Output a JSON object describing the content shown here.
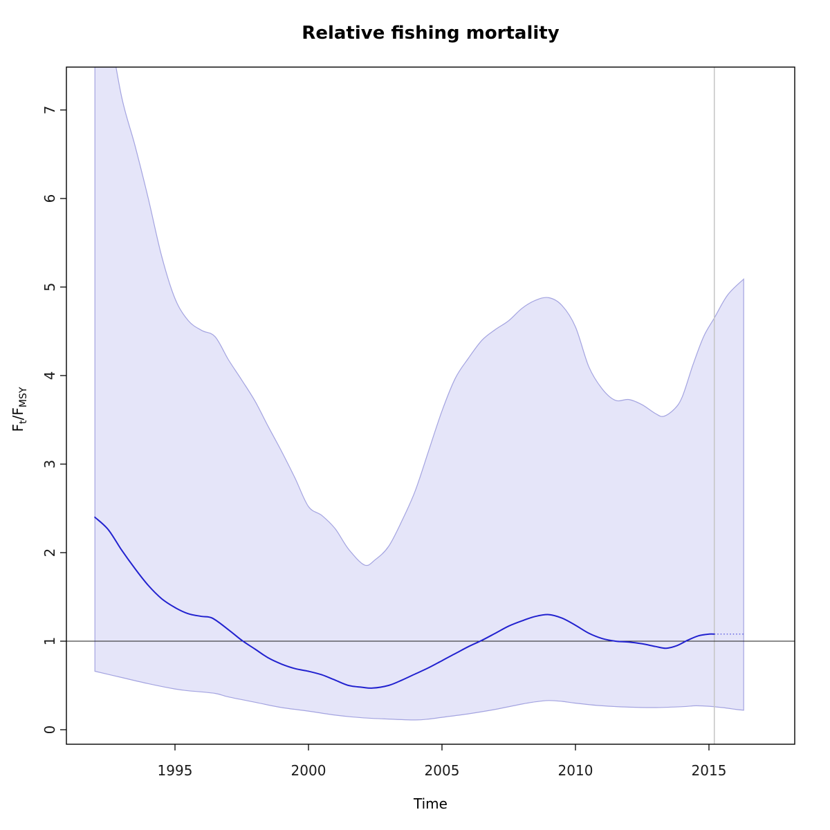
{
  "chart_data": {
    "type": "line",
    "title": "Relative fishing mortality",
    "xlabel": "Time",
    "ylabel": "Ft/FMSY",
    "ylabel_parts": {
      "base1": "F",
      "sub1": "t",
      "sep": "/",
      "base2": "F",
      "sub2": "MSY"
    },
    "xlim": [
      1990.9,
      2018.2
    ],
    "ylim": [
      -0.16,
      7.48
    ],
    "x_ticks": [
      1995,
      2000,
      2005,
      2010,
      2015
    ],
    "y_ticks": [
      0,
      1,
      2,
      3,
      4,
      5,
      6,
      7
    ],
    "grid": false,
    "legend": "none",
    "reference_lines": {
      "horizontal_y": 1.0,
      "vertical_x": 2015.2
    },
    "series": [
      {
        "name": "median-relative-fishing-mortality",
        "style": "solid",
        "x": [
          1992,
          1992.5,
          1993,
          1993.5,
          1994,
          1994.5,
          1995,
          1995.5,
          1996,
          1996.4,
          1997,
          1997.5,
          1998,
          1998.5,
          1999,
          1999.5,
          2000,
          2000.5,
          2001,
          2001.5,
          2002,
          2002.4,
          2003,
          2003.5,
          2004,
          2004.5,
          2005,
          2005.5,
          2006,
          2006.5,
          2007,
          2007.5,
          2008,
          2008.5,
          2009,
          2009.5,
          2010,
          2010.5,
          2011,
          2011.5,
          2012,
          2012.5,
          2013,
          2013.4,
          2013.8,
          2014.2,
          2014.6,
          2015,
          2015.2
        ],
        "y": [
          2.4,
          2.26,
          2.03,
          1.82,
          1.63,
          1.48,
          1.38,
          1.31,
          1.28,
          1.26,
          1.13,
          1.01,
          0.91,
          0.81,
          0.74,
          0.69,
          0.66,
          0.62,
          0.56,
          0.5,
          0.48,
          0.47,
          0.5,
          0.56,
          0.63,
          0.7,
          0.78,
          0.86,
          0.94,
          1.01,
          1.09,
          1.17,
          1.23,
          1.28,
          1.3,
          1.26,
          1.18,
          1.09,
          1.03,
          1.0,
          0.99,
          0.97,
          0.94,
          0.92,
          0.95,
          1.01,
          1.06,
          1.08,
          1.08
        ]
      },
      {
        "name": "projection-dotted",
        "style": "dotted",
        "x": [
          2015.2,
          2016.35
        ],
        "y": [
          1.08,
          1.08
        ]
      },
      {
        "name": "confidence-band-upper",
        "style": "band-edge",
        "x": [
          1992,
          1992.5,
          1993,
          1993.5,
          1994,
          1994.5,
          1995,
          1995.5,
          1996,
          1996.5,
          1997,
          1997.5,
          1998,
          1998.5,
          1999,
          1999.5,
          2000,
          2000.5,
          2001,
          2001.5,
          2002.1,
          2002.5,
          2003,
          2003.5,
          2004,
          2004.5,
          2005,
          2005.5,
          2006,
          2006.5,
          2007,
          2007.5,
          2008,
          2008.5,
          2009,
          2009.5,
          2010,
          2010.5,
          2011,
          2011.5,
          2012,
          2012.5,
          2013,
          2013.3,
          2013.7,
          2014,
          2014.4,
          2014.8,
          2015.2,
          2015.7,
          2016.3
        ],
        "y": [
          8.9,
          8.0,
          7.15,
          6.6,
          6.0,
          5.35,
          4.87,
          4.62,
          4.51,
          4.44,
          4.18,
          3.95,
          3.71,
          3.42,
          3.14,
          2.84,
          2.52,
          2.42,
          2.27,
          2.04,
          1.86,
          1.92,
          2.07,
          2.36,
          2.7,
          3.15,
          3.6,
          3.97,
          4.2,
          4.4,
          4.52,
          4.62,
          4.76,
          4.85,
          4.88,
          4.79,
          4.55,
          4.1,
          3.85,
          3.72,
          3.73,
          3.67,
          3.57,
          3.54,
          3.62,
          3.76,
          4.12,
          4.44,
          4.65,
          4.91,
          5.09
        ]
      },
      {
        "name": "confidence-band-lower",
        "style": "band-edge",
        "x": [
          1992,
          1993,
          1994,
          1995,
          1995.5,
          1996.5,
          1997,
          1998,
          1999,
          2000,
          2001,
          2002,
          2003,
          2004,
          2004.5,
          2005,
          2006,
          2007,
          2008,
          2008.5,
          2009,
          2009.5,
          2010,
          2011,
          2012,
          2013,
          2014,
          2014.5,
          2015,
          2015.5,
          2016,
          2016.3
        ],
        "y": [
          0.66,
          0.59,
          0.52,
          0.46,
          0.44,
          0.41,
          0.37,
          0.31,
          0.25,
          0.21,
          0.165,
          0.135,
          0.12,
          0.11,
          0.12,
          0.14,
          0.18,
          0.23,
          0.29,
          0.315,
          0.33,
          0.32,
          0.3,
          0.27,
          0.255,
          0.25,
          0.26,
          0.27,
          0.265,
          0.25,
          0.23,
          0.22
        ]
      }
    ],
    "colors": {
      "median_line": "#2121cf",
      "projection_line": "#4646dd",
      "band_fill": "#e5e5f9",
      "band_edge": "#a3a3e0",
      "reference_line": "#1a1a1a",
      "vertical_line": "#c4c4c4",
      "axis": "#000000",
      "tick_label": "#1a1a1a",
      "background": "#ffffff"
    }
  }
}
